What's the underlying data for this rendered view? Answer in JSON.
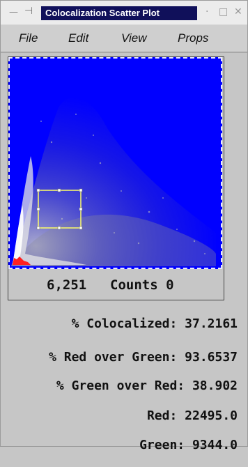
{
  "window": {
    "title": "Colocalization Scatter Plot",
    "controls": {
      "minimize": "·",
      "maximize": "□",
      "close": "✕"
    }
  },
  "menu": [
    {
      "label": "File"
    },
    {
      "label": "Edit"
    },
    {
      "label": "View"
    },
    {
      "label": "Props"
    }
  ],
  "plot": {
    "background_color": "#0000ff",
    "selection_color": "#ffff66",
    "status": {
      "pixels": "6,251",
      "counts": "Counts 0"
    }
  },
  "stats": [
    {
      "label": "% Colocalized:",
      "value": "37.2161"
    },
    {
      "label": "% Red over Green:",
      "value": "93.6537"
    },
    {
      "label": "% Green over Red:",
      "value": "38.902"
    },
    {
      "label": "Red:",
      "value": "22495.0"
    },
    {
      "label": "Green:",
      "value": "9344.0"
    }
  ]
}
